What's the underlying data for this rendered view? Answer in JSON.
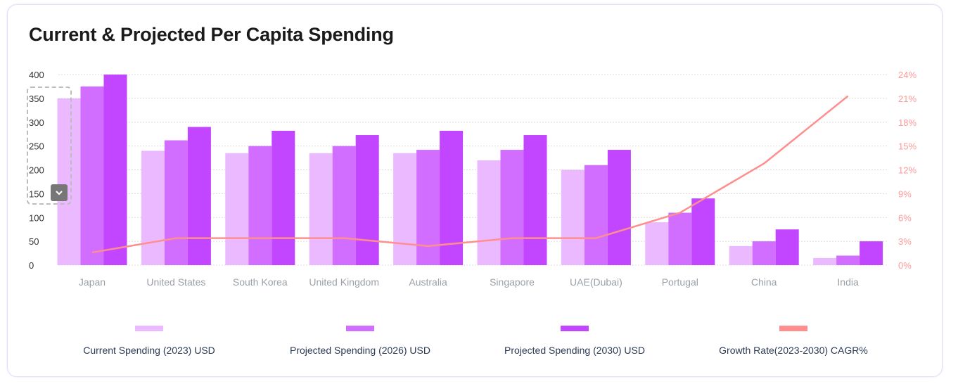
{
  "chart_data": {
    "type": "bar",
    "title": "Current & Projected Per Capita Spending",
    "categories": [
      "Japan",
      "United States",
      "South Korea",
      "United Kingdom",
      "Australia",
      "Singapore",
      "UAE(Dubai)",
      "Portugal",
      "China",
      "India"
    ],
    "series": [
      {
        "name": "Current Spending (2023) USD",
        "type": "bar",
        "axis": "left",
        "color": "#ebb9ff",
        "values": [
          350,
          240,
          235,
          235,
          235,
          220,
          200,
          90,
          40,
          15
        ]
      },
      {
        "name": "Projected Spending (2026) USD",
        "type": "bar",
        "axis": "left",
        "color": "#d16dff",
        "values": [
          375,
          262,
          250,
          250,
          242,
          242,
          210,
          110,
          50,
          20
        ]
      },
      {
        "name": "Projected Spending (2030) USD",
        "type": "bar",
        "axis": "left",
        "color": "#c245ff",
        "values": [
          400,
          290,
          282,
          273,
          282,
          273,
          242,
          140,
          75,
          50
        ]
      },
      {
        "name": "Growth Rate(2023-2030) CAGR%",
        "type": "line",
        "axis": "right",
        "color": "#ff8e8e",
        "values": [
          1.6,
          3.4,
          3.4,
          3.4,
          2.4,
          3.4,
          3.4,
          6.6,
          12.8,
          21.3
        ]
      }
    ],
    "ylim": [
      0,
      400
    ],
    "yticks": [
      "0",
      "50",
      "100",
      "150",
      "200",
      "250",
      "300",
      "350",
      "400"
    ],
    "y2lim": [
      0,
      24
    ],
    "y2ticks": [
      "0%",
      "3%",
      "6%",
      "9%",
      "12%",
      "15%",
      "18%",
      "21%",
      "24%"
    ],
    "grid": true,
    "legend_position": "bottom"
  }
}
